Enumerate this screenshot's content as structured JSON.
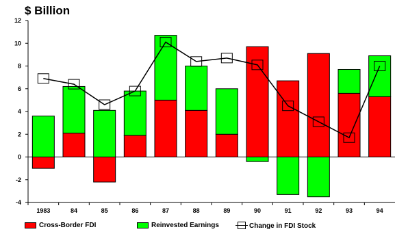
{
  "chart_data": {
    "type": "bar",
    "unit_label": "$ Billion",
    "categories": [
      "1983",
      "84",
      "85",
      "86",
      "87",
      "88",
      "89",
      "90",
      "91",
      "92",
      "93",
      "94"
    ],
    "ylim": [
      -4,
      12
    ],
    "yticks": [
      -4,
      -2,
      0,
      2,
      4,
      6,
      8,
      10,
      12
    ],
    "grid": false,
    "stacked": true,
    "series": [
      {
        "name": "Cross-Border FDI",
        "type": "bar",
        "color": "#ff0000",
        "values": [
          -1.0,
          2.1,
          -2.2,
          1.9,
          5.0,
          4.1,
          2.0,
          9.7,
          6.7,
          9.1,
          5.6,
          5.3
        ]
      },
      {
        "name": "Reinvested Earnings",
        "type": "bar",
        "color": "#00ff00",
        "values": [
          3.6,
          4.1,
          4.1,
          3.9,
          5.7,
          3.9,
          4.0,
          -0.4,
          -3.3,
          -3.5,
          2.1,
          3.6
        ]
      },
      {
        "name": "Change in FDI Stock",
        "type": "line",
        "color": "#000000",
        "values": [
          6.9,
          6.4,
          4.6,
          5.8,
          10.1,
          8.4,
          8.7,
          8.1,
          4.5,
          3.1,
          1.7,
          8.0
        ]
      }
    ],
    "legend_position": "bottom"
  }
}
